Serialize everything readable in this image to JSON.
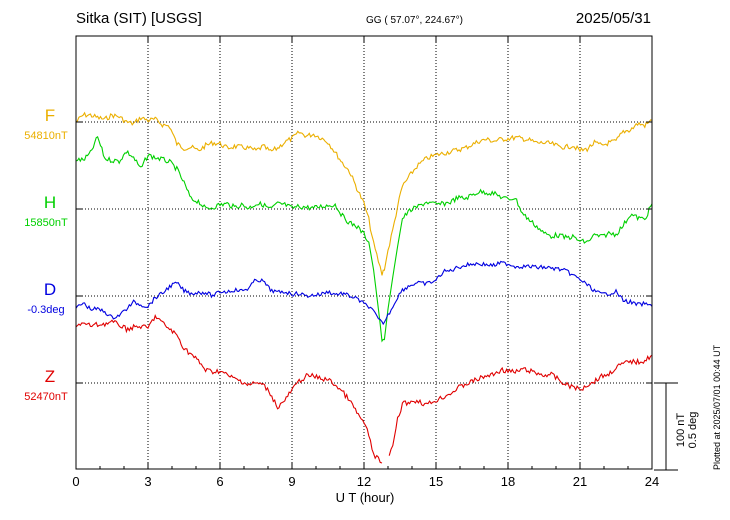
{
  "header": {
    "station": "Sitka (SIT)  [USGS]",
    "coords": "GG ( 57.07°, 224.67°)",
    "date": "2025/05/31"
  },
  "footer": {
    "plotted": "Plotted at 2025/07/01 00:44 UT"
  },
  "chart_data": {
    "type": "line",
    "title": "Sitka (SIT)  [USGS]",
    "xlabel": "U T (hour)",
    "xlim": [
      0,
      24
    ],
    "xticks": [
      0,
      3,
      6,
      9,
      12,
      15,
      18,
      21,
      24
    ],
    "grid": true,
    "scale_bar": {
      "line1": "100 nT",
      "line2": "0.5 deg"
    },
    "series": [
      {
        "name": "F",
        "baseline_label": "54810nT",
        "color": "#ebaf00",
        "unit": "nT",
        "baseline": 54810,
        "x": [
          0.0,
          0.3,
          0.6,
          0.9,
          1.2,
          1.5,
          1.8,
          2.1,
          2.4,
          2.7,
          3.0,
          3.3,
          3.6,
          3.9,
          4.2,
          4.5,
          4.8,
          5.1,
          5.4,
          5.7,
          6.0,
          6.3,
          6.6,
          6.9,
          7.2,
          7.5,
          7.8,
          8.1,
          8.4,
          8.7,
          9.0,
          9.3,
          9.6,
          9.9,
          10.2,
          10.5,
          10.8,
          11.1,
          11.4,
          11.7,
          12.0,
          12.2,
          12.4,
          12.6,
          12.75,
          12.85,
          13.0,
          13.2,
          13.4,
          13.6,
          13.9,
          14.2,
          14.6,
          15.0,
          15.3,
          15.6,
          15.9,
          16.2,
          16.5,
          16.8,
          17.1,
          17.4,
          17.7,
          18.0,
          18.3,
          18.6,
          18.9,
          19.2,
          19.5,
          19.8,
          20.1,
          20.4,
          20.7,
          21.0,
          21.3,
          21.6,
          21.9,
          22.2,
          22.5,
          22.8,
          23.1,
          23.4,
          23.7,
          24.0
        ],
        "values": [
          0,
          8,
          8,
          5,
          3,
          8,
          6,
          0,
          -2,
          5,
          2,
          3,
          -3,
          -5,
          -25,
          -30,
          -29,
          -33,
          -27,
          -24,
          -25,
          -30,
          -28,
          -29,
          -30,
          -33,
          -28,
          -34,
          -30,
          -23,
          -19,
          -12,
          -16,
          -14,
          -18,
          -23,
          -35,
          -47,
          -57,
          -76,
          -94,
          -112,
          -140,
          -160,
          -175,
          -168,
          -148,
          -124,
          -97,
          -74,
          -62,
          -51,
          -42,
          -38,
          -36,
          -34,
          -32,
          -30,
          -26,
          -22,
          -20,
          -22,
          -20,
          -19,
          -18,
          -19,
          -21,
          -24,
          -24,
          -25,
          -28,
          -29,
          -27,
          -33,
          -31,
          -24,
          -27,
          -24,
          -22,
          -11,
          -9,
          -2,
          -4,
          2
        ]
      },
      {
        "name": "H",
        "baseline_label": "15850nT",
        "color": "#00d000",
        "unit": "nT",
        "baseline": 15850,
        "x": [
          0.0,
          0.3,
          0.6,
          0.9,
          1.2,
          1.5,
          1.8,
          2.1,
          2.4,
          2.7,
          3.0,
          3.3,
          3.6,
          3.9,
          4.2,
          4.5,
          4.8,
          5.1,
          5.4,
          5.7,
          6.0,
          6.3,
          6.6,
          6.9,
          7.2,
          7.5,
          7.8,
          8.1,
          8.4,
          8.7,
          9.0,
          9.3,
          9.6,
          9.9,
          10.2,
          10.5,
          10.8,
          11.1,
          11.4,
          11.7,
          12.0,
          12.2,
          12.4,
          12.6,
          12.75,
          12.85,
          13.0,
          13.2,
          13.4,
          13.6,
          13.9,
          14.2,
          14.6,
          15.0,
          15.3,
          15.6,
          15.9,
          16.2,
          16.5,
          16.8,
          17.1,
          17.4,
          17.7,
          18.0,
          18.3,
          18.6,
          18.9,
          19.2,
          19.5,
          19.8,
          20.1,
          20.4,
          20.7,
          21.0,
          21.3,
          21.6,
          21.9,
          22.2,
          22.5,
          22.8,
          23.1,
          23.4,
          23.7,
          24.0
        ],
        "values": [
          57,
          56,
          64,
          83,
          58,
          56,
          55,
          66,
          59,
          46,
          62,
          59,
          57,
          54,
          46,
          30,
          11,
          9,
          0,
          2,
          5,
          6,
          2,
          5,
          1,
          6,
          5,
          0,
          6,
          5,
          1,
          3,
          2,
          1,
          3,
          4,
          5,
          -8,
          -16,
          -20,
          -29,
          -38,
          -70,
          -115,
          -150,
          -150,
          -115,
          -78,
          -43,
          -11,
          -2,
          2,
          8,
          5,
          6,
          8,
          13,
          12,
          16,
          20,
          19,
          18,
          14,
          11,
          13,
          -5,
          -13,
          -20,
          -28,
          -31,
          -30,
          -33,
          -32,
          -37,
          -38,
          -30,
          -32,
          -28,
          -29,
          -19,
          -6,
          -10,
          -12,
          6
        ]
      },
      {
        "name": "D",
        "baseline_label": "-0.3deg",
        "color": "#0000e0",
        "unit": "deg",
        "baseline": -0.3,
        "x": [
          0.0,
          0.3,
          0.6,
          0.9,
          1.2,
          1.5,
          1.8,
          2.1,
          2.4,
          2.7,
          3.0,
          3.3,
          3.6,
          3.9,
          4.2,
          4.5,
          4.8,
          5.1,
          5.4,
          5.7,
          6.0,
          6.3,
          6.6,
          6.9,
          7.2,
          7.5,
          7.8,
          8.1,
          8.4,
          8.7,
          9.0,
          9.3,
          9.6,
          9.9,
          10.2,
          10.5,
          10.8,
          11.1,
          11.4,
          11.7,
          12.0,
          12.2,
          12.4,
          12.6,
          12.75,
          12.85,
          13.0,
          13.2,
          13.4,
          13.6,
          13.9,
          14.2,
          14.6,
          15.0,
          15.3,
          15.6,
          15.9,
          16.2,
          16.5,
          16.8,
          17.1,
          17.4,
          17.7,
          18.0,
          18.3,
          18.6,
          18.9,
          19.2,
          19.5,
          19.8,
          20.1,
          20.4,
          20.7,
          21.0,
          21.3,
          21.6,
          21.9,
          22.2,
          22.5,
          22.8,
          23.1,
          23.4,
          23.7,
          24.0
        ],
        "values": [
          -0.07,
          -0.04,
          -0.075,
          -0.075,
          -0.09,
          -0.125,
          -0.11,
          -0.075,
          -0.035,
          -0.05,
          -0.06,
          -0.01,
          0.015,
          0.055,
          0.075,
          0.03,
          0.015,
          0.02,
          0.02,
          0.0,
          0.025,
          0.025,
          0.035,
          0.03,
          0.045,
          0.095,
          0.085,
          0.035,
          0.02,
          0.025,
          0.01,
          0.015,
          0.0,
          0.005,
          0.01,
          0.025,
          0.01,
          0.015,
          0.0,
          -0.015,
          -0.045,
          -0.06,
          -0.09,
          -0.135,
          -0.155,
          -0.15,
          -0.11,
          -0.06,
          -0.005,
          0.035,
          0.06,
          0.075,
          0.07,
          0.09,
          0.14,
          0.145,
          0.165,
          0.175,
          0.185,
          0.185,
          0.18,
          0.175,
          0.19,
          0.185,
          0.17,
          0.17,
          0.17,
          0.165,
          0.165,
          0.16,
          0.155,
          0.145,
          0.12,
          0.095,
          0.065,
          0.03,
          0.01,
          0.015,
          0.025,
          -0.025,
          -0.035,
          -0.05,
          -0.045,
          -0.06
        ]
      },
      {
        "name": "Z",
        "baseline_label": "52470nT",
        "color": "#e00000",
        "unit": "nT",
        "baseline": 52470,
        "x": [
          0.0,
          0.3,
          0.6,
          0.9,
          1.2,
          1.5,
          1.8,
          2.1,
          2.4,
          2.7,
          3.0,
          3.3,
          3.6,
          3.9,
          4.2,
          4.5,
          4.8,
          5.1,
          5.4,
          5.7,
          6.0,
          6.3,
          6.6,
          6.9,
          7.2,
          7.5,
          7.8,
          8.1,
          8.4,
          8.7,
          9.0,
          9.3,
          9.6,
          9.9,
          10.2,
          10.5,
          10.8,
          11.1,
          11.4,
          11.7,
          12.0,
          12.2,
          12.4,
          12.6,
          12.75,
          null,
          13.05,
          13.2,
          13.4,
          13.6,
          13.9,
          14.2,
          14.6,
          15.0,
          15.3,
          15.6,
          15.9,
          16.2,
          16.5,
          16.8,
          17.1,
          17.4,
          17.7,
          18.0,
          18.3,
          18.6,
          18.9,
          19.2,
          19.5,
          19.8,
          20.1,
          20.4,
          20.7,
          21.0,
          21.3,
          21.6,
          21.9,
          22.2,
          22.5,
          22.8,
          23.1,
          23.4,
          23.7,
          24.0
        ],
        "values": [
          67,
          68,
          66,
          67,
          68,
          70,
          67,
          62,
          64,
          65,
          63,
          77,
          69,
          62,
          55,
          40,
          33,
          25,
          15,
          13,
          14,
          9,
          5,
          2,
          -2,
          0,
          -2,
          -12,
          -28,
          -20,
          -8,
          2,
          8,
          8,
          5,
          4,
          -2,
          -10,
          -20,
          -34,
          -46,
          -60,
          -82,
          -88,
          -92,
          null,
          -85,
          -72,
          -42,
          -24,
          -22,
          -20,
          -25,
          -20,
          -16,
          -12,
          -6,
          -2,
          2,
          5,
          8,
          10,
          15,
          14,
          12,
          16,
          14,
          11,
          9,
          10,
          4,
          -2,
          -4,
          -8,
          -2,
          2,
          8,
          10,
          18,
          22,
          25,
          24,
          26,
          32
        ]
      }
    ]
  }
}
